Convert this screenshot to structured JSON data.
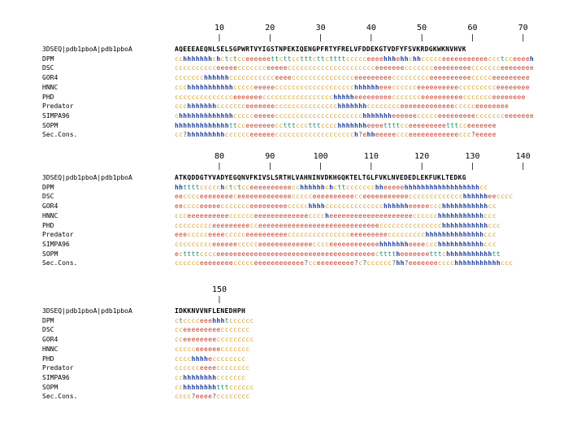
{
  "blocks": [
    {
      "ticks": [
        "10",
        "20",
        "30",
        "40",
        "50",
        "60",
        "70"
      ],
      "rows": [
        {
          "label": "3DSEQ|pdb1pboA|pdb1pboA",
          "value": "AQEEEAEQNLSELSGPWRTVYIGSTNPEKIQENGPFRTYFRELVFDDEKGTVDFYFSVKRDGKWKNVHVK",
          "type": "seq"
        },
        {
          "label": "DPM",
          "value": "cchhhhhhhchctctcceeeeeettcttcctttcttcttttccccceeeehhhehhchhccccceeeeeeeeeeeccctcceeeeh",
          "type": "ss"
        },
        {
          "label": "DSC",
          "value": "cccccccccceeeeeccccccceeeeeccccccccccccccccccccceeeeeeeccccccceeeeeeeeeccccccceeeeeeee",
          "type": "ss"
        },
        {
          "label": "GOR4",
          "value": "ccccccchhhhhhccccccccccceeeeccccccccccccccceeeeeeeeeccccccccceeeeeeeeeeccccceeeeeeeee",
          "type": "ss"
        },
        {
          "label": "HNNC",
          "value": "ccchhhhhhhhhhhccccceeeeeccccccccccccccccccchhhhhheeecccccceeeeeeeeeeccccccccceeeeeeee",
          "type": "ss"
        },
        {
          "label": "PHD",
          "value": "cccccccccccccceeeeeeeccccccccccccccccchhhhheeeeeeeeeccccccceeeeeeeeeeccccccceeeeeeee",
          "type": "ss"
        },
        {
          "label": "Predator",
          "value": "ccchhhhhhhccccccceeeeeeeccccccccccccccchhhhhhhcccccccceeeeeeeeeeeeeccccceeeeeeee",
          "type": "ss"
        },
        {
          "label": "SIMPA96",
          "value": "chhhhhhhhhhhhhccccceeeeeccccccccccccccccccccchhhhhhheeeeeeccccceeeeeeeeeccccccceeeeeee",
          "type": "ss"
        },
        {
          "label": "SOPM",
          "value": "hhhhhhhhhhhhhttcceeeeeeecctttccctttcccchhhhhhheeeettttcceeeeeeeeetttcceeeeeee",
          "type": "ss"
        },
        {
          "label": "Sec.Cons.",
          "value": "cc?hhhhhhhhhcccccceeeeeeccccccccccccccccccch?ehheeeeeccceeeeeeeeeeeeccc?eeeee",
          "type": "ss"
        }
      ]
    },
    {
      "ticks": [
        "80",
        "90",
        "100",
        "110",
        "120",
        "130",
        "140"
      ],
      "rows": [
        {
          "label": "3DSEQ|pdb1pboA|pdb1pboA",
          "value": "ATKQDDGTYVADYEGQNVFKIVSLSRTHLVAHNINVDKHGQKTELTGLFVKLNVEDEDLEKFUKLTEDKG",
          "type": "seq"
        },
        {
          "label": "DPM",
          "value": "hhttttccccchctctcceeeeeeeeeecchhhhhhchcttccccccchheeeeehhhhhhhhhhhhhhhhhhcc",
          "type": "ss"
        },
        {
          "label": "DSC",
          "value": "eecccceeeeeeeeceeeeeeeeeeeeeccccceeeeeeeeeecceeeeeeeeeeeccccccccccccchhhhhheecccc",
          "type": "ss"
        },
        {
          "label": "GOR4",
          "value": "eecccceeeeeccccccceeeeeeeeeccccchhhhcccccccccccccchhhhhheeeeeccchhhhhhhhhhhcc",
          "type": "ss"
        },
        {
          "label": "HNNC",
          "value": "ccceeeeeeeeeecccccceeeeeeeeeeeeeccccheeeeeeeeeeeeeeeeeeeecccccchhhhhhhhhhhccc",
          "type": "ss"
        },
        {
          "label": "PHD",
          "value": "ccccccccceeeeeeeeecceeeeeeeeeeeeeeeeeeeeeeeeeeeeeccccccccccccccchhhhhhhhhhhccc",
          "type": "ss"
        },
        {
          "label": "Predator",
          "value": "eeeccccceeeeccccceeeeeeeeeeccccccccccccccceeeeeeeeeccccccccchhhhhhhhhhhhhhccc",
          "type": "ss"
        },
        {
          "label": "SIMPA96",
          "value": "ccccccccceeeeeeccccceeeeeeeeeeeeecccceeeeeeeeeeeehhhhhhheeeeccchhhhhhhhhhhccc",
          "type": "ss"
        },
        {
          "label": "SOPM",
          "value": "ecttttcccceeeeeeeeeeeeeeeeeeeeeeeeeeeeeeeeeeeeeecttttheeeeeeetttchhhhhhhhhhhtt",
          "type": "ss"
        },
        {
          "label": "Sec.Cons.",
          "value": "cccccceeeeeeeeccccceeeeeeeeeeee?cceeeeeeeee?c?cccccc?hh?eeeeeeecccchhhhhhhhhhhccc",
          "type": "ss"
        }
      ]
    },
    {
      "ticks": [
        "150"
      ],
      "rows": [
        {
          "label": "3DSEQ|pdb1pboA|pdb1pboA",
          "value": "IDKKNVVNFLENEDHPH",
          "type": "seq"
        },
        {
          "label": "DPM",
          "value": "ctcccceeehhhtcccccc",
          "type": "ss"
        },
        {
          "label": "DSC",
          "value": "cceeeeeeeeeccccccc",
          "type": "ss"
        },
        {
          "label": "GOR4",
          "value": "cceeeeeeeeccccccccc",
          "type": "ss"
        },
        {
          "label": "HNNC",
          "value": "ccccceeeeeeccccccc",
          "type": "ss"
        },
        {
          "label": "PHD",
          "value": "cccchhhhecccccccc",
          "type": "ss"
        },
        {
          "label": "Predator",
          "value": "cccccceeeecccccccc",
          "type": "ss"
        },
        {
          "label": "SIMPA96",
          "value": "cchhhhhhhhccccccc",
          "type": "ss"
        },
        {
          "label": "SOPM",
          "value": "cchhhhhhhhtttcccccc",
          "type": "ss"
        },
        {
          "label": "Sec.Cons.",
          "value": "cccc?eeee?cccccccc",
          "type": "ss"
        }
      ]
    }
  ],
  "colors": {
    "helix": "#1f3f9a",
    "strand": "#c8402a",
    "coil": "#d6a12a",
    "turn": "#1f8a6a",
    "ambiguous": "#555555",
    "sequence": "#000000"
  }
}
